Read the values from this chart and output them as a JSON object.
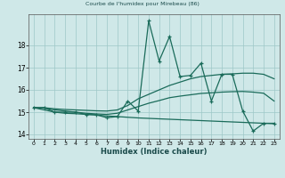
{
  "title": "Courbe de l'humidex pour Mirebeau (86)",
  "xlabel": "Humidex (Indice chaleur)",
  "x": [
    0,
    1,
    2,
    3,
    4,
    5,
    6,
    7,
    8,
    9,
    10,
    11,
    12,
    13,
    14,
    15,
    16,
    17,
    18,
    19,
    20,
    21,
    22,
    23
  ],
  "main_y": [
    15.2,
    15.2,
    15.0,
    15.0,
    15.0,
    14.9,
    14.88,
    14.75,
    14.8,
    15.5,
    15.05,
    19.1,
    17.3,
    18.4,
    16.6,
    16.65,
    17.2,
    15.5,
    16.7,
    16.7,
    15.05,
    14.15,
    14.5,
    14.5
  ],
  "upper_trend": [
    15.2,
    15.2,
    15.15,
    15.12,
    15.1,
    15.08,
    15.06,
    15.05,
    15.1,
    15.3,
    15.6,
    15.8,
    16.0,
    16.2,
    16.35,
    16.5,
    16.6,
    16.65,
    16.7,
    16.72,
    16.75,
    16.75,
    16.7,
    16.5
  ],
  "lower_trend": [
    15.2,
    15.18,
    15.1,
    15.05,
    15.0,
    14.95,
    14.92,
    14.9,
    14.95,
    15.1,
    15.25,
    15.4,
    15.52,
    15.65,
    15.72,
    15.78,
    15.84,
    15.87,
    15.9,
    15.92,
    15.93,
    15.9,
    15.85,
    15.5
  ],
  "flat_line": [
    15.2,
    15.1,
    15.0,
    14.95,
    14.93,
    14.9,
    14.87,
    14.83,
    14.8,
    14.77,
    14.74,
    14.72,
    14.7,
    14.68,
    14.66,
    14.64,
    14.62,
    14.6,
    14.58,
    14.56,
    14.54,
    14.52,
    14.5,
    14.48
  ],
  "line_color": "#1a6b5a",
  "bg_color": "#cfe8e8",
  "grid_color": "#9ec8c8",
  "ylim": [
    13.8,
    19.4
  ],
  "yticks": [
    14,
    15,
    16,
    17,
    18
  ],
  "xlim": [
    -0.5,
    23.5
  ]
}
